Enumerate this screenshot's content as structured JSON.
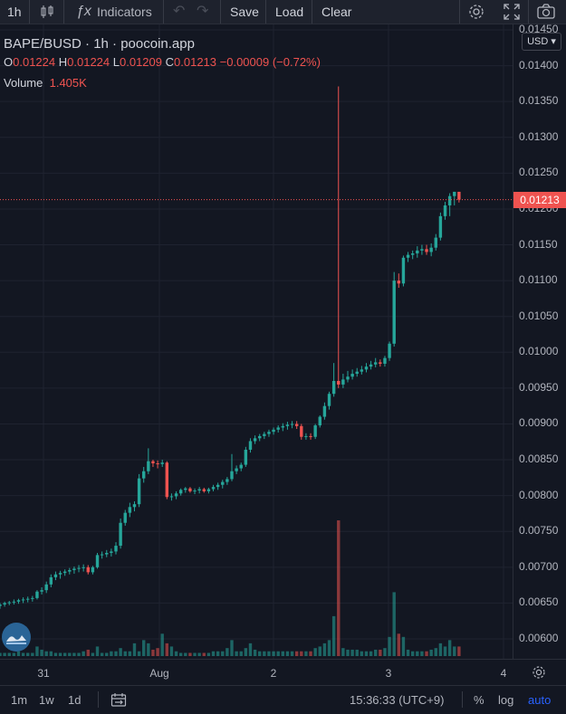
{
  "toolbar": {
    "interval": "1h",
    "indicators_label": "Indicators",
    "save_label": "Save",
    "load_label": "Load",
    "clear_label": "Clear"
  },
  "legend": {
    "symbol": "BAPE/BUSD · 1h · poocoin.app",
    "open_label": "O",
    "open": "0.01224",
    "high_label": "H",
    "high": "0.01224",
    "low_label": "L",
    "low": "0.01209",
    "close_label": "C",
    "close": "0.01213",
    "change": "−0.00009 (−0.72%)",
    "volume_label": "Volume",
    "volume": "1.405K"
  },
  "price_axis": {
    "currency": "USD",
    "labels": [
      "0.01450",
      "0.01400",
      "0.01350",
      "0.01300",
      "0.01250",
      "0.01200",
      "0.01150",
      "0.01100",
      "0.01050",
      "0.01000",
      "0.00950",
      "0.00900",
      "0.00850",
      "0.00800",
      "0.00750",
      "0.00700",
      "0.00650",
      "0.00600"
    ],
    "last_price": "0.01213"
  },
  "time_axis": {
    "labels": [
      "31",
      "Aug",
      "2",
      "3",
      "4"
    ]
  },
  "bottombar": {
    "ranges": [
      "1m",
      "1w",
      "1d"
    ],
    "clock": "15:36:33 (UTC+9)",
    "percent_label": "%",
    "log_label": "log",
    "auto_label": "auto"
  },
  "colors": {
    "up": "#26a69a",
    "down": "#ef5350",
    "background": "#131722",
    "grid": "#1f2330"
  },
  "chart_data": {
    "type": "candlestick",
    "symbol": "BAPE/BUSD",
    "interval": "1h",
    "ylim": [
      0.0058,
      0.0146
    ],
    "series": [
      {
        "name": "price",
        "ohlc": [
          [
            0.00646,
            0.0065,
            0.00642,
            0.00648
          ],
          [
            0.00648,
            0.00652,
            0.00645,
            0.0065
          ],
          [
            0.0065,
            0.00653,
            0.00647,
            0.00651
          ],
          [
            0.00651,
            0.00655,
            0.00648,
            0.00652
          ],
          [
            0.00652,
            0.00656,
            0.00649,
            0.00654
          ],
          [
            0.00654,
            0.00658,
            0.0065,
            0.00655
          ],
          [
            0.00655,
            0.00659,
            0.00651,
            0.00656
          ],
          [
            0.00656,
            0.0066,
            0.00652,
            0.00657
          ],
          [
            0.00657,
            0.00668,
            0.00655,
            0.00666
          ],
          [
            0.00666,
            0.00672,
            0.00662,
            0.00668
          ],
          [
            0.00668,
            0.0068,
            0.00664,
            0.00676
          ],
          [
            0.00676,
            0.0069,
            0.00672,
            0.00686
          ],
          [
            0.00686,
            0.00694,
            0.00682,
            0.0069
          ],
          [
            0.0069,
            0.00695,
            0.00684,
            0.00692
          ],
          [
            0.00692,
            0.00697,
            0.00688,
            0.00694
          ],
          [
            0.00694,
            0.00699,
            0.0069,
            0.00696
          ],
          [
            0.00696,
            0.00701,
            0.00691,
            0.00698
          ],
          [
            0.00698,
            0.00703,
            0.00693,
            0.00699
          ],
          [
            0.00699,
            0.00704,
            0.00694,
            0.007
          ],
          [
            0.007,
            0.00703,
            0.0069,
            0.00693
          ],
          [
            0.00693,
            0.00702,
            0.0069,
            0.007
          ],
          [
            0.007,
            0.0072,
            0.00698,
            0.00717
          ],
          [
            0.00717,
            0.00722,
            0.00712,
            0.00718
          ],
          [
            0.00718,
            0.00724,
            0.00714,
            0.0072
          ],
          [
            0.0072,
            0.00726,
            0.00715,
            0.00722
          ],
          [
            0.00722,
            0.00735,
            0.00718,
            0.0073
          ],
          [
            0.0073,
            0.00768,
            0.00726,
            0.00762
          ],
          [
            0.00762,
            0.0078,
            0.00758,
            0.00776
          ],
          [
            0.00776,
            0.0079,
            0.0077,
            0.00784
          ],
          [
            0.00784,
            0.00792,
            0.00778,
            0.00788
          ],
          [
            0.00788,
            0.0083,
            0.00784,
            0.00824
          ],
          [
            0.00824,
            0.0084,
            0.00818,
            0.00834
          ],
          [
            0.00834,
            0.00866,
            0.0083,
            0.00848
          ],
          [
            0.00848,
            0.0085,
            0.0084,
            0.00845
          ],
          [
            0.00845,
            0.00849,
            0.00838,
            0.00844
          ],
          [
            0.00844,
            0.0085,
            0.0084,
            0.00846
          ],
          [
            0.00846,
            0.00848,
            0.00795,
            0.00798
          ],
          [
            0.00798,
            0.00803,
            0.00793,
            0.00799
          ],
          [
            0.00799,
            0.00806,
            0.00795,
            0.00803
          ],
          [
            0.00803,
            0.0081,
            0.008,
            0.00808
          ],
          [
            0.00808,
            0.00812,
            0.00804,
            0.0081
          ],
          [
            0.0081,
            0.00812,
            0.00804,
            0.00806
          ],
          [
            0.00806,
            0.0081,
            0.00802,
            0.00807
          ],
          [
            0.00807,
            0.00812,
            0.00803,
            0.00809
          ],
          [
            0.00809,
            0.00811,
            0.00804,
            0.00806
          ],
          [
            0.00806,
            0.00811,
            0.00803,
            0.00809
          ],
          [
            0.00809,
            0.00815,
            0.00806,
            0.00812
          ],
          [
            0.00812,
            0.00818,
            0.00808,
            0.00815
          ],
          [
            0.00815,
            0.00822,
            0.0081,
            0.00819
          ],
          [
            0.00819,
            0.00826,
            0.00815,
            0.00823
          ],
          [
            0.00823,
            0.00858,
            0.0082,
            0.00834
          ],
          [
            0.00834,
            0.00842,
            0.0083,
            0.00838
          ],
          [
            0.00838,
            0.00846,
            0.00834,
            0.00843
          ],
          [
            0.00843,
            0.00868,
            0.0084,
            0.00864
          ],
          [
            0.00864,
            0.0088,
            0.0086,
            0.00876
          ],
          [
            0.00876,
            0.00884,
            0.00872,
            0.0088
          ],
          [
            0.0088,
            0.00886,
            0.00876,
            0.00883
          ],
          [
            0.00883,
            0.00889,
            0.00879,
            0.00886
          ],
          [
            0.00886,
            0.00892,
            0.00882,
            0.00889
          ],
          [
            0.00889,
            0.00895,
            0.00885,
            0.00892
          ],
          [
            0.00892,
            0.00898,
            0.00888,
            0.00895
          ],
          [
            0.00895,
            0.00901,
            0.0089,
            0.00897
          ],
          [
            0.00897,
            0.00903,
            0.00892,
            0.00899
          ],
          [
            0.00899,
            0.00904,
            0.00894,
            0.009
          ],
          [
            0.009,
            0.00904,
            0.00893,
            0.00897
          ],
          [
            0.00897,
            0.009,
            0.00878,
            0.00882
          ],
          [
            0.00882,
            0.00887,
            0.00878,
            0.00883
          ],
          [
            0.00883,
            0.00887,
            0.00878,
            0.00882
          ],
          [
            0.00882,
            0.009,
            0.00879,
            0.00898
          ],
          [
            0.00898,
            0.00912,
            0.00895,
            0.0091
          ],
          [
            0.0091,
            0.0093,
            0.00906,
            0.00925
          ],
          [
            0.00925,
            0.00945,
            0.0092,
            0.00942
          ],
          [
            0.00942,
            0.00985,
            0.00938,
            0.0096
          ],
          [
            0.0096,
            0.01371,
            0.0095,
            0.00955
          ],
          [
            0.00955,
            0.0097,
            0.0095,
            0.00962
          ],
          [
            0.00962,
            0.00974,
            0.00958,
            0.00966
          ],
          [
            0.00966,
            0.00976,
            0.00962,
            0.0097
          ],
          [
            0.0097,
            0.00978,
            0.00966,
            0.00973
          ],
          [
            0.00973,
            0.00981,
            0.00969,
            0.00976
          ],
          [
            0.00976,
            0.00985,
            0.00972,
            0.0098
          ],
          [
            0.0098,
            0.00988,
            0.00976,
            0.00983
          ],
          [
            0.00983,
            0.00992,
            0.00979,
            0.00986
          ],
          [
            0.00986,
            0.0099,
            0.0098,
            0.00984
          ],
          [
            0.00984,
            0.00995,
            0.0098,
            0.00992
          ],
          [
            0.00992,
            0.01015,
            0.00988,
            0.01012
          ],
          [
            0.01012,
            0.01112,
            0.01008,
            0.011
          ],
          [
            0.011,
            0.0111,
            0.0109,
            0.01096
          ],
          [
            0.01096,
            0.01135,
            0.01092,
            0.01132
          ],
          [
            0.01132,
            0.0114,
            0.01126,
            0.01136
          ],
          [
            0.01136,
            0.01142,
            0.0113,
            0.01138
          ],
          [
            0.01138,
            0.01148,
            0.01132,
            0.01142
          ],
          [
            0.01142,
            0.0115,
            0.01136,
            0.01144
          ],
          [
            0.01144,
            0.0115,
            0.01136,
            0.0114
          ],
          [
            0.0114,
            0.01152,
            0.01134,
            0.01146
          ],
          [
            0.01146,
            0.01165,
            0.01142,
            0.0116
          ],
          [
            0.0116,
            0.01195,
            0.01156,
            0.0119
          ],
          [
            0.0119,
            0.0121,
            0.01185,
            0.01205
          ],
          [
            0.01205,
            0.01222,
            0.0119,
            0.01218
          ],
          [
            0.01218,
            0.01224,
            0.01205,
            0.01224
          ],
          [
            0.01224,
            0.01224,
            0.01209,
            0.01213
          ]
        ]
      },
      {
        "name": "Volume",
        "values": [
          2,
          2,
          2,
          2,
          3,
          2,
          2,
          2,
          6,
          4,
          3,
          3,
          2,
          2,
          2,
          2,
          2,
          2,
          3,
          4,
          2,
          6,
          2,
          2,
          3,
          3,
          5,
          3,
          3,
          8,
          3,
          10,
          8,
          4,
          5,
          14,
          8,
          6,
          3,
          2,
          2,
          2,
          2,
          2,
          2,
          2,
          3,
          3,
          3,
          5,
          10,
          3,
          3,
          5,
          8,
          4,
          3,
          3,
          3,
          3,
          3,
          3,
          3,
          3,
          3,
          3,
          3,
          3,
          5,
          6,
          8,
          10,
          25,
          85,
          5,
          4,
          4,
          4,
          3,
          3,
          3,
          4,
          4,
          5,
          12,
          40,
          14,
          12,
          4,
          3,
          3,
          3,
          3,
          4,
          5,
          8,
          6,
          10,
          6,
          6
        ]
      }
    ]
  }
}
